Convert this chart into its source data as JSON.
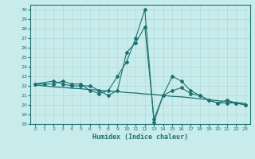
{
  "xlabel": "Humidex (Indice chaleur)",
  "xlim": [
    -0.5,
    23.5
  ],
  "ylim": [
    18,
    30.5
  ],
  "yticks": [
    18,
    19,
    20,
    21,
    22,
    23,
    24,
    25,
    26,
    27,
    28,
    29,
    30
  ],
  "xticks": [
    0,
    1,
    2,
    3,
    4,
    5,
    6,
    7,
    8,
    9,
    10,
    11,
    12,
    13,
    14,
    15,
    16,
    17,
    18,
    19,
    20,
    21,
    22,
    23
  ],
  "bg_color": "#c8ecec",
  "line_color": "#1e7070",
  "grid_color": "#b0d8d8",
  "regression_x": [
    0,
    1,
    2,
    3,
    4,
    5,
    6,
    7,
    8,
    9,
    10,
    11,
    12,
    13,
    14,
    15,
    16,
    17,
    18,
    19,
    20,
    21,
    22,
    23
  ],
  "regression_y": [
    22.1,
    22.0,
    21.9,
    21.85,
    21.75,
    21.7,
    21.6,
    21.55,
    21.45,
    21.4,
    21.3,
    21.25,
    21.15,
    21.1,
    21.0,
    20.9,
    20.85,
    20.75,
    20.65,
    20.55,
    20.45,
    20.35,
    20.25,
    20.15
  ],
  "line1_x": [
    0,
    1,
    2,
    3,
    4,
    5,
    6,
    7,
    8,
    9,
    10,
    11,
    12,
    13,
    14,
    15,
    16,
    17,
    18,
    19,
    20,
    21,
    22,
    23
  ],
  "line1_y": [
    22.2,
    22.2,
    22.2,
    22.5,
    22.2,
    22.2,
    21.5,
    21.2,
    21.5,
    23.0,
    24.5,
    27.0,
    30.0,
    18.2,
    21.0,
    23.0,
    22.5,
    21.5,
    21.0,
    20.5,
    20.2,
    20.5,
    20.2,
    20.0
  ],
  "line2_x": [
    0,
    2,
    3,
    4,
    5,
    6,
    7,
    8,
    9,
    10,
    11,
    12,
    13,
    14,
    15,
    16,
    17,
    18,
    19,
    20,
    21,
    22,
    23
  ],
  "line2_y": [
    22.2,
    22.5,
    22.2,
    22.0,
    22.0,
    22.0,
    21.5,
    21.0,
    21.5,
    25.5,
    26.5,
    28.2,
    18.5,
    21.0,
    21.5,
    21.8,
    21.2,
    21.0,
    20.5,
    20.2,
    20.2,
    20.2,
    20.0
  ]
}
